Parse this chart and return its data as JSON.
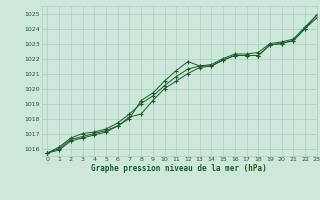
{
  "title": "Graphe pression niveau de la mer (hPa)",
  "bg_color": "#cde8db",
  "grid_color": "#a8cfc0",
  "line_color": "#1a5c2a",
  "xlim": [
    -0.5,
    23
  ],
  "ylim": [
    1015.5,
    1025.5
  ],
  "yticks": [
    1016,
    1017,
    1018,
    1019,
    1020,
    1021,
    1022,
    1023,
    1024,
    1025
  ],
  "xticks": [
    0,
    1,
    2,
    3,
    4,
    5,
    6,
    7,
    8,
    9,
    10,
    11,
    12,
    13,
    14,
    15,
    16,
    17,
    18,
    19,
    20,
    21,
    22,
    23
  ],
  "series": [
    [
      1015.7,
      1016.0,
      1016.6,
      1016.8,
      1017.0,
      1017.2,
      1017.5,
      1018.1,
      1018.3,
      1019.2,
      1020.0,
      1020.5,
      1021.0,
      1021.4,
      1021.5,
      1021.9,
      1022.2,
      1022.2,
      1022.2,
      1022.9,
      1023.0,
      1023.2,
      1024.0,
      1024.7
    ],
    [
      1015.7,
      1015.9,
      1016.5,
      1016.7,
      1016.9,
      1017.1,
      1017.5,
      1018.0,
      1019.2,
      1019.7,
      1020.5,
      1021.2,
      1021.8,
      1021.5,
      1021.5,
      1021.9,
      1022.2,
      1022.2,
      1022.2,
      1022.9,
      1023.0,
      1023.2,
      1024.0,
      1024.9
    ],
    [
      1015.7,
      1016.1,
      1016.7,
      1017.0,
      1017.1,
      1017.3,
      1017.7,
      1018.3,
      1019.0,
      1019.5,
      1020.2,
      1020.8,
      1021.3,
      1021.5,
      1021.6,
      1022.0,
      1022.3,
      1022.3,
      1022.4,
      1023.0,
      1023.1,
      1023.3,
      1024.1,
      1024.9
    ]
  ]
}
